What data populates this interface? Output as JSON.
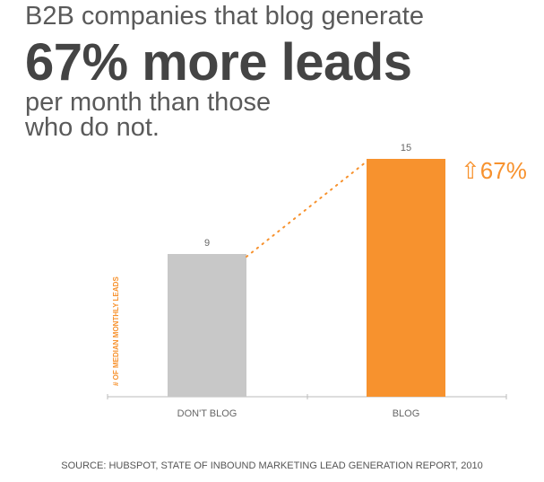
{
  "headline": {
    "line1": "B2B companies that blog generate",
    "line2": "67% more leads",
    "line3": "per month than those",
    "line4": "who do not."
  },
  "chart_data": {
    "type": "bar",
    "categories": [
      "DON'T BLOG",
      "BLOG"
    ],
    "values": [
      9,
      15
    ],
    "ylabel": "# OF MEDIAN MONTHLY LEADS",
    "ylim": [
      0,
      15
    ],
    "annotation": "⇧67%",
    "colors": [
      "#c8c8c8",
      "#f7922e"
    ],
    "grid": false
  },
  "source": "SOURCE: HUBSPOT, STATE OF INBOUND MARKETING LEAD GENERATION REPORT, 2010"
}
